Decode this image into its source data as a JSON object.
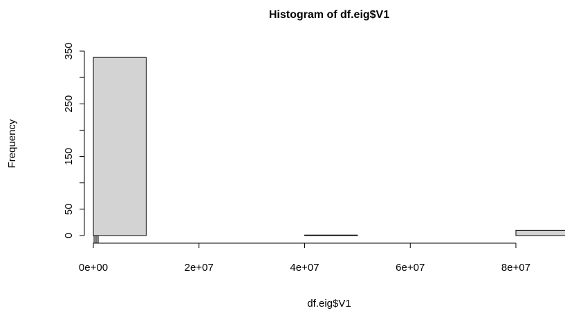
{
  "chart_data": {
    "type": "histogram",
    "title": "Histogram of df.eig$V1",
    "x_label": "df.eig$V1",
    "y_label": "Frequency",
    "bins": [
      0,
      10000000,
      20000000,
      30000000,
      40000000,
      50000000,
      60000000,
      70000000,
      80000000,
      90000000
    ],
    "values": [
      338,
      0,
      0,
      0,
      1,
      0,
      0,
      0,
      10
    ],
    "color": "#d3d3d3",
    "rug": [
      130000,
      390000,
      650000,
      920000
    ],
    "xlim": [
      0,
      80000000
    ],
    "ylim": [
      0,
      350
    ],
    "xticks": [
      {
        "value": 0,
        "label": "0e+00"
      },
      {
        "value": 20000000,
        "label": "2e+07"
      },
      {
        "value": 40000000,
        "label": "4e+07"
      },
      {
        "value": 60000000,
        "label": "6e+07"
      },
      {
        "value": 80000000,
        "label": "8e+07"
      }
    ],
    "yticks": [
      0,
      50,
      {
        "value": 100,
        "label": null
      },
      150,
      {
        "value": 200,
        "label": null
      },
      250,
      {
        "value": 300,
        "label": null
      },
      350
    ]
  }
}
